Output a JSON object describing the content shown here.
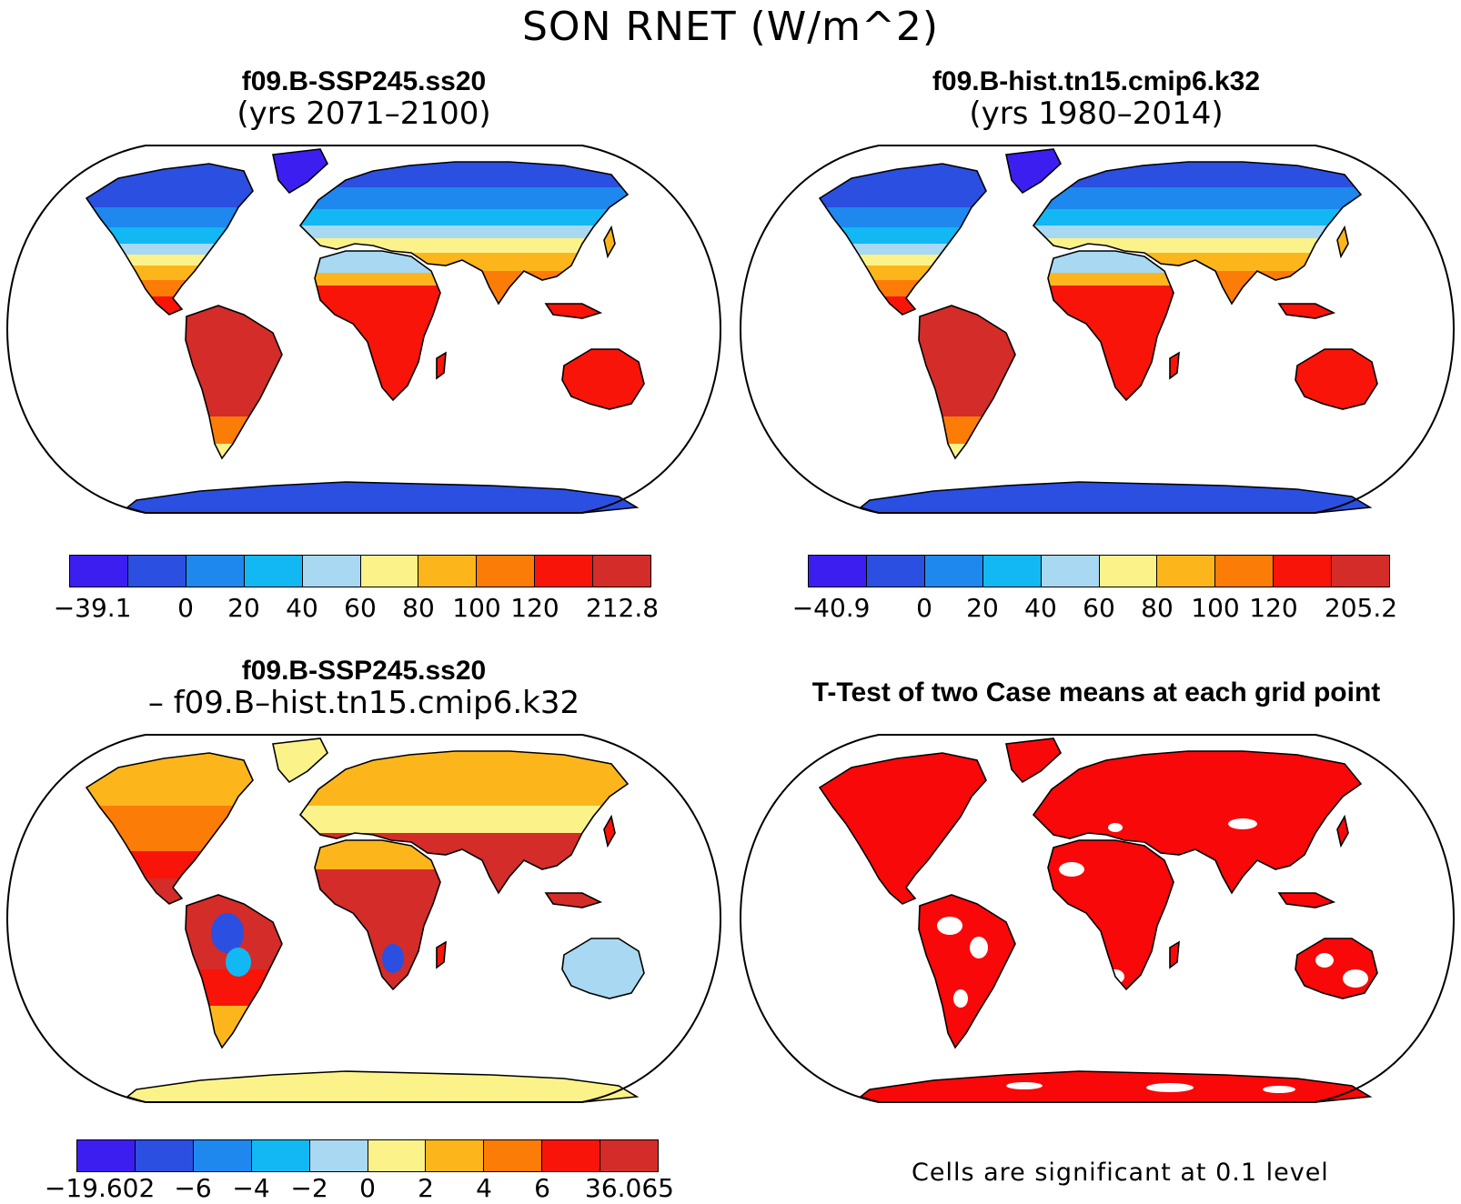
{
  "title": "SON RNET (W/m^2)",
  "panels": [
    {
      "id": "ssp",
      "title": "f09.B-SSP245.ss20",
      "subtitle": "(yrs 2071–2100)"
    },
    {
      "id": "hist",
      "title": "f09.B-hist.tn15.cmip6.k32",
      "subtitle": "(yrs 1980–2014)"
    },
    {
      "id": "diff",
      "title": "f09.B-SSP245.ss20",
      "subtitle": "– f09.B–hist.tn15.cmip6.k32"
    },
    {
      "id": "ttest",
      "title": "T-Test of two Case means at each grid point",
      "subtitle": ""
    }
  ],
  "colorbars": {
    "ssp": {
      "labels": [
        "−39.1",
        "0",
        "20",
        "40",
        "60",
        "80",
        "100",
        "120",
        "212.8"
      ],
      "colors": [
        "#3d1ef0",
        "#2b4fe0",
        "#1e88ee",
        "#12b8f4",
        "#a8d8f2",
        "#fcf28a",
        "#fcb61c",
        "#fc7c08",
        "#f81408",
        "#d42c28"
      ]
    },
    "hist": {
      "labels": [
        "−40.9",
        "0",
        "20",
        "40",
        "60",
        "80",
        "100",
        "120",
        "205.2"
      ],
      "colors": [
        "#3d1ef0",
        "#2b4fe0",
        "#1e88ee",
        "#12b8f4",
        "#a8d8f2",
        "#fcf28a",
        "#fcb61c",
        "#fc7c08",
        "#f81408",
        "#d42c28"
      ]
    },
    "diff": {
      "labels": [
        "−19.602",
        "−6",
        "−4",
        "−2",
        "0",
        "2",
        "4",
        "6",
        "36.065"
      ],
      "colors": [
        "#3d1ef0",
        "#2b4fe0",
        "#1e88ee",
        "#12b8f4",
        "#a8d8f2",
        "#fcf28a",
        "#fcb61c",
        "#fc7c08",
        "#f81408",
        "#d42c28"
      ]
    }
  },
  "significance_note": "Cells are significant at 0.1 level",
  "significance_color": "#f80808"
}
